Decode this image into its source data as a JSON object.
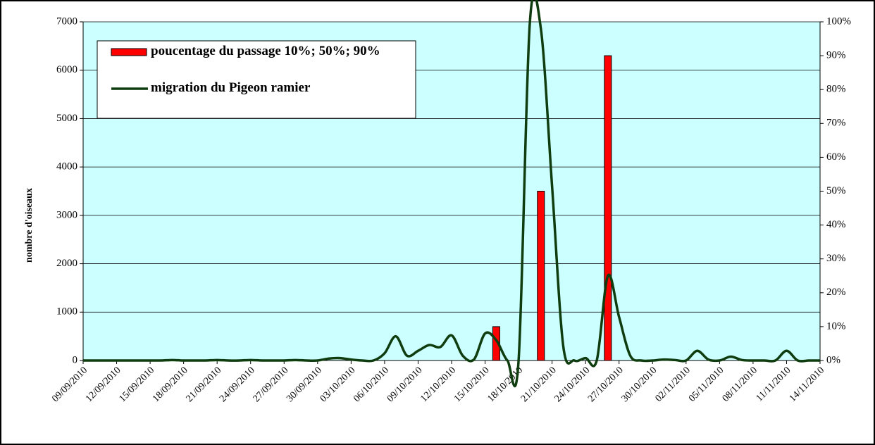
{
  "chart_data": {
    "type": "bar-line",
    "y_label": "nombre d'oiseaux",
    "categories": [
      "09/09/2010",
      null,
      null,
      "12/09/2010",
      null,
      null,
      "15/09/2010",
      null,
      null,
      "18/09/2010",
      null,
      null,
      "21/09/2010",
      null,
      null,
      "24/09/2010",
      null,
      null,
      "27/09/2010",
      null,
      null,
      "30/09/2010",
      null,
      null,
      "03/10/2010",
      null,
      null,
      "06/10/2010",
      null,
      null,
      "09/10/2010",
      null,
      null,
      "12/10/2010",
      null,
      null,
      "15/10/2010",
      null,
      null,
      "18/10/2010",
      null,
      null,
      "21/10/2010",
      null,
      null,
      "24/10/2010",
      null,
      null,
      "27/10/2010",
      null,
      null,
      "30/10/2010",
      null,
      null,
      "02/11/2010",
      null,
      null,
      "05/11/2010",
      null,
      null,
      "08/11/2010",
      null,
      null,
      "11/11/2010",
      null,
      null,
      "14/11/2010"
    ],
    "series": [
      {
        "name": "poucentage du passage 10%; 50%; 90%",
        "type": "bar",
        "axis": "y2",
        "color": "#ff0000",
        "values": [
          null,
          null,
          null,
          null,
          null,
          null,
          null,
          null,
          null,
          null,
          null,
          null,
          null,
          null,
          null,
          null,
          null,
          null,
          null,
          null,
          null,
          null,
          null,
          null,
          null,
          null,
          null,
          null,
          null,
          null,
          null,
          null,
          null,
          null,
          null,
          null,
          null,
          10,
          null,
          null,
          null,
          50,
          null,
          null,
          null,
          null,
          null,
          90,
          null,
          null,
          null,
          null,
          null,
          null,
          null,
          null,
          null,
          null,
          null,
          null,
          null,
          null,
          null,
          null,
          null,
          null,
          null
        ]
      },
      {
        "name": "migration du Pigeon ramier",
        "type": "line",
        "color": "#0f3d0f",
        "values": [
          0,
          0,
          0,
          0,
          0,
          0,
          0,
          0,
          10,
          0,
          0,
          0,
          10,
          0,
          0,
          10,
          0,
          0,
          0,
          10,
          0,
          0,
          40,
          50,
          20,
          0,
          0,
          150,
          500,
          100,
          200,
          320,
          280,
          520,
          100,
          20,
          560,
          420,
          0,
          0,
          6950,
          6850,
          3600,
          300,
          0,
          50,
          0,
          1750,
          900,
          100,
          0,
          0,
          20,
          10,
          0,
          200,
          20,
          0,
          80,
          10,
          0,
          0,
          0,
          200,
          0,
          0,
          0
        ]
      }
    ],
    "ylim": [
      0,
      7000
    ],
    "yticks": [
      0,
      1000,
      2000,
      3000,
      4000,
      5000,
      6000,
      7000
    ],
    "y2lim": [
      0,
      100
    ],
    "y2ticks": [
      {
        "value": 0,
        "label": "0%"
      },
      {
        "value": 10,
        "label": "10%"
      },
      {
        "value": 20,
        "label": "20%"
      },
      {
        "value": 30,
        "label": "30%"
      },
      {
        "value": 40,
        "label": "40%"
      },
      {
        "value": 50,
        "label": "50%"
      },
      {
        "value": 60,
        "label": "60%"
      },
      {
        "value": 70,
        "label": "70%"
      },
      {
        "value": 80,
        "label": "80%"
      },
      {
        "value": 90,
        "label": "90%"
      },
      {
        "value": 100,
        "label": "100%"
      }
    ],
    "grid": true,
    "legend": "upper left"
  }
}
